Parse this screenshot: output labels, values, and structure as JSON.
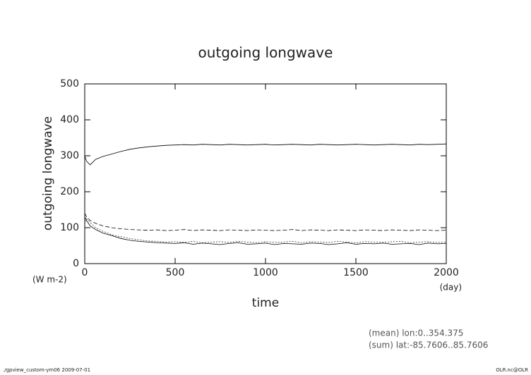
{
  "chart_data": {
    "type": "line",
    "title": "outgoing longwave",
    "y_label": "outgoing longwave",
    "y_unit": "(W m-2)",
    "x_label": "time",
    "x_unit": "(day)",
    "x": [
      0,
      10,
      30,
      60,
      100,
      150,
      200,
      250,
      300,
      350,
      400,
      450,
      500,
      550,
      600,
      650,
      700,
      750,
      800,
      850,
      900,
      950,
      1000,
      1050,
      1100,
      1150,
      1200,
      1250,
      1300,
      1350,
      1400,
      1450,
      1500,
      1550,
      1600,
      1650,
      1700,
      1750,
      1800,
      1850,
      1900,
      1950,
      2000
    ],
    "series": [
      {
        "color": "#000000",
        "dash": "none",
        "values": [
          300,
          285,
          275,
          290,
          298,
          305,
          312,
          318,
          322,
          325,
          327,
          329,
          330,
          331,
          330,
          332,
          331,
          330,
          332,
          331,
          330,
          331,
          332,
          330,
          331,
          332,
          331,
          330,
          332,
          331,
          330,
          331,
          332,
          331,
          330,
          331,
          332,
          331,
          330,
          332,
          331,
          332,
          333
        ]
      },
      {
        "color": "#000000",
        "dash": "6 3",
        "values": [
          140,
          130,
          120,
          112,
          105,
          100,
          97,
          95,
          94,
          93,
          94,
          92,
          93,
          95,
          92,
          94,
          93,
          92,
          94,
          93,
          92,
          94,
          93,
          92,
          93,
          95,
          92,
          94,
          93,
          92,
          94,
          93,
          92,
          94,
          93,
          92,
          94,
          93,
          92,
          94,
          93,
          92,
          93
        ]
      },
      {
        "color": "#000000",
        "dash": "none",
        "values": [
          130,
          120,
          105,
          95,
          85,
          78,
          70,
          65,
          62,
          60,
          58,
          57,
          56,
          58,
          54,
          57,
          55,
          53,
          56,
          58,
          54,
          55,
          57,
          53,
          56,
          55,
          54,
          57,
          56,
          53,
          55,
          58,
          54,
          56,
          55,
          57,
          54,
          55,
          56,
          53,
          57,
          55,
          56
        ]
      },
      {
        "color": "#333333",
        "dash": "2 2",
        "values": [
          110,
          125,
          115,
          100,
          90,
          80,
          75,
          70,
          66,
          63,
          62,
          60,
          61,
          59,
          62,
          58,
          60,
          61,
          59,
          62,
          60,
          58,
          61,
          59,
          60,
          62,
          58,
          61,
          60,
          59,
          62,
          60,
          58,
          61,
          60,
          59,
          61,
          62,
          58,
          60,
          61,
          59,
          60
        ]
      }
    ],
    "xlim": [
      0,
      2000
    ],
    "ylim": [
      0,
      500
    ],
    "xticks": [
      0,
      500,
      1000,
      1500,
      2000
    ],
    "yticks": [
      0,
      100,
      200,
      300,
      400,
      500
    ],
    "notes": [
      "(mean) lon:0..354.375",
      "(sum) lat:-85.7606..85.7606"
    ],
    "footer_left": "./gpview_custom-ym06  2009-07-01",
    "footer_right": "OLR.nc@OLR"
  }
}
